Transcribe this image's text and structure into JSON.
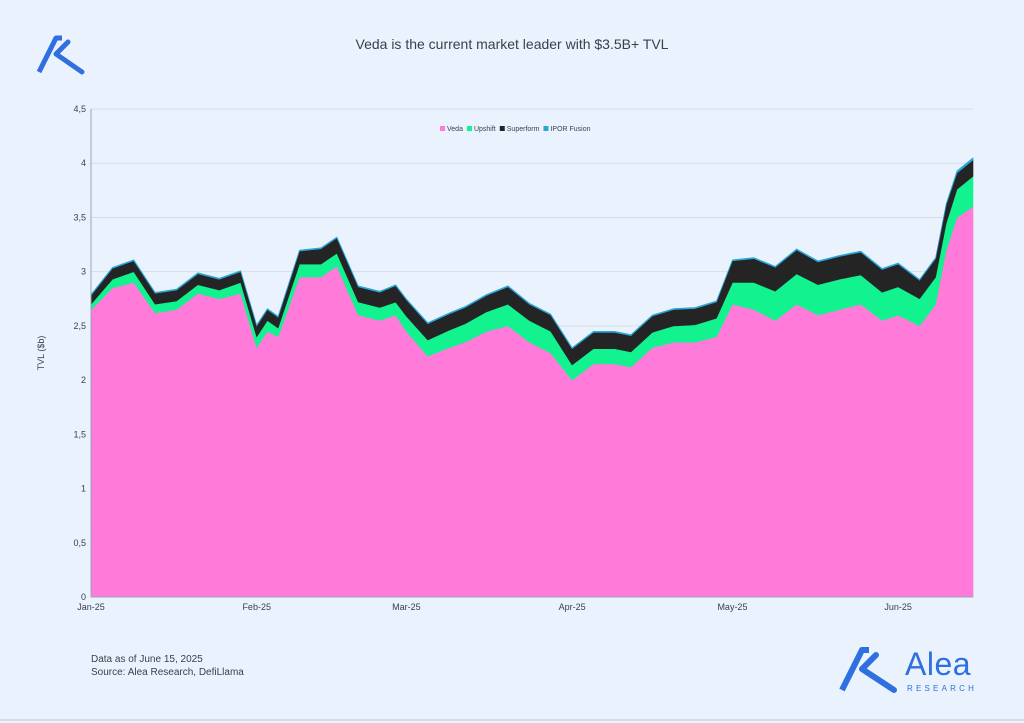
{
  "title": "Veda is the current market leader with $3.5B+ TVL",
  "footnote": {
    "line1": "Data as of June 15, 2025",
    "line2": "Source: Alea Research, DefiLlama"
  },
  "brand": {
    "name": "Alea",
    "sub": "RESEARCH",
    "color": "#2f6fe0"
  },
  "chart_data": {
    "type": "area",
    "stacked": true,
    "title": "Veda is the current market leader with $3.5B+ TVL",
    "xlabel": "",
    "ylabel": "TVL ($b)",
    "ylim": [
      0,
      4.5
    ],
    "grid": true,
    "legend_position": "top-center",
    "x_ticks": [
      "Jan-25",
      "Feb-25",
      "Mar-25",
      "Apr-25",
      "May-25",
      "Jun-25"
    ],
    "y_ticks": [
      "0",
      "0,5",
      "1",
      "1,5",
      "2",
      "2,5",
      "3",
      "3,5",
      "4",
      "4,5"
    ],
    "x": [
      "2025-01-01",
      "2025-01-05",
      "2025-01-09",
      "2025-01-13",
      "2025-01-17",
      "2025-01-21",
      "2025-01-25",
      "2025-01-29",
      "2025-02-01",
      "2025-02-03",
      "2025-02-05",
      "2025-02-09",
      "2025-02-13",
      "2025-02-16",
      "2025-02-20",
      "2025-02-24",
      "2025-02-27",
      "2025-03-01",
      "2025-03-05",
      "2025-03-09",
      "2025-03-12",
      "2025-03-16",
      "2025-03-20",
      "2025-03-24",
      "2025-03-28",
      "2025-04-01",
      "2025-04-05",
      "2025-04-09",
      "2025-04-12",
      "2025-04-16",
      "2025-04-20",
      "2025-04-24",
      "2025-04-28",
      "2025-05-01",
      "2025-05-05",
      "2025-05-09",
      "2025-05-13",
      "2025-05-17",
      "2025-05-21",
      "2025-05-25",
      "2025-05-29",
      "2025-06-01",
      "2025-06-05",
      "2025-06-08",
      "2025-06-10",
      "2025-06-12",
      "2025-06-15"
    ],
    "series": [
      {
        "name": "Veda",
        "color": "#ff7ad9",
        "values": [
          2.65,
          2.85,
          2.9,
          2.62,
          2.65,
          2.8,
          2.75,
          2.8,
          2.3,
          2.45,
          2.4,
          2.95,
          2.95,
          3.05,
          2.6,
          2.55,
          2.6,
          2.45,
          2.22,
          2.3,
          2.35,
          2.45,
          2.5,
          2.35,
          2.25,
          2.0,
          2.15,
          2.15,
          2.12,
          2.3,
          2.35,
          2.35,
          2.4,
          2.7,
          2.65,
          2.55,
          2.7,
          2.6,
          2.65,
          2.7,
          2.55,
          2.6,
          2.5,
          2.7,
          3.2,
          3.5,
          3.6
        ]
      },
      {
        "name": "Upshift",
        "color": "#12f28f",
        "values": [
          0.05,
          0.08,
          0.1,
          0.08,
          0.08,
          0.08,
          0.08,
          0.1,
          0.1,
          0.1,
          0.08,
          0.12,
          0.12,
          0.12,
          0.12,
          0.12,
          0.12,
          0.14,
          0.15,
          0.16,
          0.17,
          0.18,
          0.2,
          0.2,
          0.2,
          0.14,
          0.14,
          0.14,
          0.14,
          0.14,
          0.15,
          0.16,
          0.17,
          0.2,
          0.25,
          0.27,
          0.28,
          0.28,
          0.28,
          0.27,
          0.26,
          0.26,
          0.25,
          0.25,
          0.25,
          0.26,
          0.28
        ]
      },
      {
        "name": "Superform",
        "color": "#242424",
        "values": [
          0.08,
          0.1,
          0.1,
          0.1,
          0.1,
          0.1,
          0.1,
          0.1,
          0.1,
          0.1,
          0.1,
          0.12,
          0.14,
          0.14,
          0.14,
          0.14,
          0.15,
          0.15,
          0.15,
          0.15,
          0.15,
          0.15,
          0.16,
          0.15,
          0.15,
          0.15,
          0.15,
          0.15,
          0.15,
          0.15,
          0.15,
          0.15,
          0.15,
          0.2,
          0.22,
          0.22,
          0.22,
          0.21,
          0.21,
          0.21,
          0.21,
          0.21,
          0.17,
          0.17,
          0.17,
          0.15,
          0.15
        ]
      },
      {
        "name": "IPOR Fusion",
        "color": "#2aa7d9",
        "values": [
          0.01,
          0.01,
          0.01,
          0.01,
          0.01,
          0.01,
          0.01,
          0.01,
          0.01,
          0.01,
          0.01,
          0.01,
          0.01,
          0.01,
          0.01,
          0.01,
          0.01,
          0.01,
          0.01,
          0.01,
          0.01,
          0.01,
          0.01,
          0.01,
          0.01,
          0.01,
          0.01,
          0.01,
          0.01,
          0.01,
          0.01,
          0.01,
          0.01,
          0.01,
          0.01,
          0.01,
          0.01,
          0.01,
          0.01,
          0.01,
          0.01,
          0.01,
          0.01,
          0.01,
          0.01,
          0.02,
          0.02
        ]
      }
    ]
  }
}
